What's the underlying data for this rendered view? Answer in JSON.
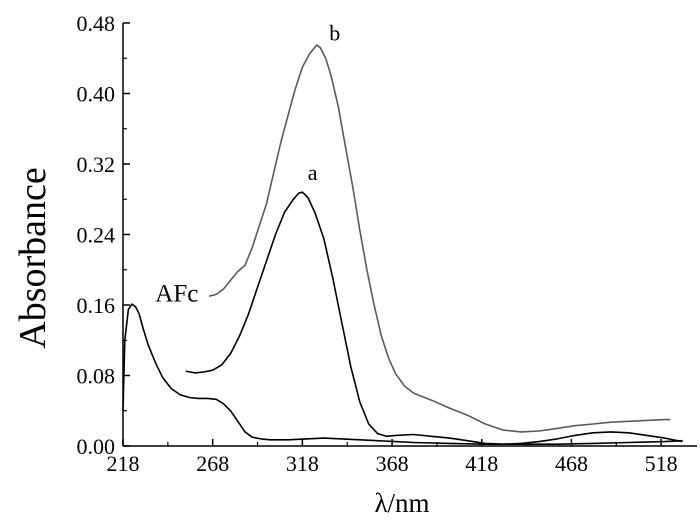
{
  "chart_data": {
    "type": "line",
    "title": "",
    "xlabel": "λ/nm",
    "ylabel": "Absorbance",
    "xlim": [
      218,
      538
    ],
    "ylim": [
      0,
      0.48
    ],
    "xticks": [
      218,
      268,
      318,
      368,
      418,
      468,
      518
    ],
    "yticks": [
      0.0,
      0.08,
      0.16,
      0.24,
      0.32,
      0.4,
      0.48
    ],
    "grid": false,
    "legend": "none",
    "series": [
      {
        "name": "AFc",
        "color": "#000000",
        "x": [
          218,
          219,
          221,
          223,
          225,
          227,
          229,
          232,
          236,
          240,
          245,
          250,
          255,
          260,
          265,
          270,
          274,
          278,
          282,
          286,
          290,
          295,
          300,
          310,
          320,
          330,
          340,
          350,
          360,
          370,
          380,
          400,
          420,
          440,
          460,
          480,
          500,
          520,
          530
        ],
        "y": [
          0.04,
          0.12,
          0.155,
          0.161,
          0.158,
          0.15,
          0.135,
          0.115,
          0.095,
          0.078,
          0.065,
          0.058,
          0.055,
          0.054,
          0.054,
          0.053,
          0.048,
          0.04,
          0.028,
          0.016,
          0.01,
          0.008,
          0.007,
          0.007,
          0.008,
          0.009,
          0.008,
          0.007,
          0.006,
          0.005,
          0.004,
          0.003,
          0.002,
          0.002,
          0.002,
          0.003,
          0.004,
          0.005,
          0.006
        ]
      },
      {
        "name": "a",
        "color": "#000000",
        "x": [
          253,
          258,
          263,
          268,
          273,
          278,
          283,
          288,
          293,
          298,
          303,
          308,
          313,
          316,
          318,
          321,
          325,
          330,
          335,
          340,
          345,
          350,
          355,
          360,
          365,
          370,
          380,
          390,
          400,
          410,
          420,
          430,
          440,
          450,
          460,
          470,
          480,
          490,
          500,
          510,
          520,
          530
        ],
        "y": [
          0.085,
          0.083,
          0.084,
          0.086,
          0.092,
          0.105,
          0.125,
          0.15,
          0.18,
          0.21,
          0.24,
          0.265,
          0.28,
          0.287,
          0.288,
          0.282,
          0.265,
          0.235,
          0.19,
          0.14,
          0.09,
          0.05,
          0.025,
          0.014,
          0.011,
          0.012,
          0.013,
          0.011,
          0.009,
          0.006,
          0.003,
          0.002,
          0.003,
          0.005,
          0.008,
          0.012,
          0.015,
          0.016,
          0.015,
          0.012,
          0.009,
          0.005
        ]
      },
      {
        "name": "b",
        "color": "#5a5a5a",
        "x": [
          266,
          270,
          274,
          278,
          282,
          286,
          290,
          294,
          298,
          302,
          306,
          310,
          314,
          318,
          322,
          326,
          328,
          331,
          334,
          338,
          342,
          346,
          350,
          354,
          358,
          362,
          366,
          370,
          375,
          380,
          390,
          400,
          410,
          420,
          430,
          440,
          450,
          460,
          470,
          480,
          490,
          500,
          510,
          520,
          523
        ],
        "y": [
          0.17,
          0.172,
          0.178,
          0.188,
          0.198,
          0.205,
          0.225,
          0.25,
          0.275,
          0.31,
          0.345,
          0.375,
          0.405,
          0.43,
          0.445,
          0.455,
          0.452,
          0.44,
          0.42,
          0.385,
          0.34,
          0.295,
          0.245,
          0.2,
          0.16,
          0.125,
          0.1,
          0.082,
          0.068,
          0.06,
          0.052,
          0.043,
          0.035,
          0.025,
          0.018,
          0.016,
          0.017,
          0.02,
          0.023,
          0.025,
          0.027,
          0.028,
          0.029,
          0.03,
          0.03
        ]
      }
    ],
    "annotations": [
      {
        "text": "AFc",
        "x": 236,
        "y": 0.164
      },
      {
        "text": "a",
        "x": 321,
        "y": 0.302
      },
      {
        "text": "b",
        "x": 333,
        "y": 0.46
      }
    ]
  }
}
